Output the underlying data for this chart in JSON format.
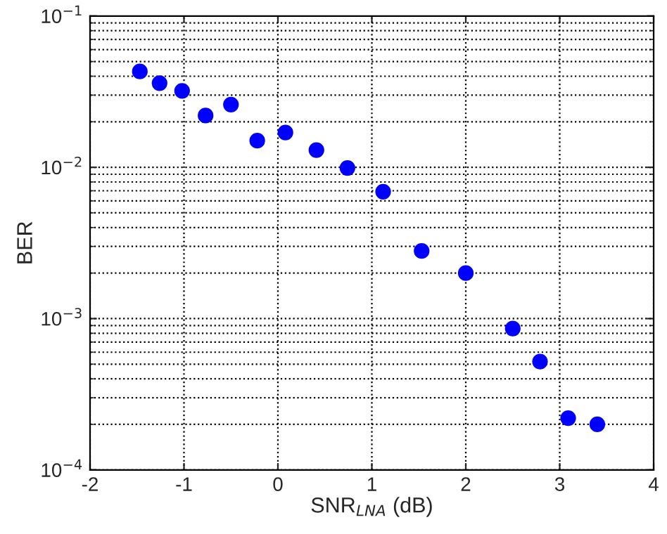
{
  "chart_data": {
    "type": "scatter",
    "xlabel": "SNR$_{LNA}$ (dB)",
    "ylabel": "BER",
    "x": [
      -1.47,
      -1.26,
      -1.02,
      -0.77,
      -0.5,
      -0.22,
      0.08,
      0.41,
      0.74,
      1.12,
      1.53,
      2.0,
      2.5,
      2.79,
      3.09,
      3.4
    ],
    "series": [
      {
        "color": "#0000ff",
        "values": [
          0.043,
          0.036,
          0.032,
          0.022,
          0.026,
          0.015,
          0.017,
          0.013,
          0.0099,
          0.0069,
          0.0028,
          0.002,
          0.00086,
          0.00052,
          0.00022,
          0.0002
        ]
      }
    ],
    "log": "y",
    "xlim": [
      -2,
      4
    ],
    "xticks": [
      -2,
      -1,
      0,
      1,
      2,
      3,
      4
    ],
    "ylim": [
      0.0001,
      0.1
    ],
    "yticks": [
      {
        "value": 0.0001,
        "label": "10$^{−4}$"
      },
      {
        "value": 0.001,
        "label": "10$^{−3}$"
      },
      {
        "value": 0.01,
        "label": "10$^{−2}$"
      },
      {
        "value": 0.1,
        "label": "10$^{−1}$"
      }
    ],
    "grid": true,
    "marker": "circle"
  }
}
